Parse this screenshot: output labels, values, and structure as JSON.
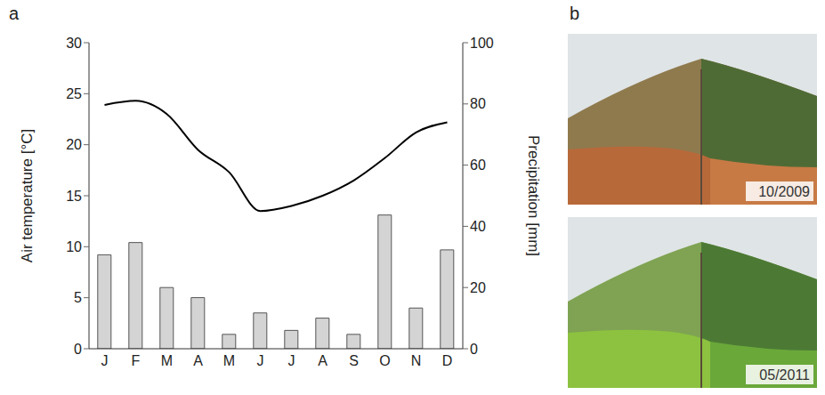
{
  "chart_data": {
    "type": "bar",
    "panel_label": "a",
    "categories": [
      "J",
      "F",
      "M",
      "A",
      "M",
      "J",
      "J",
      "A",
      "S",
      "O",
      "N",
      "D"
    ],
    "y_label": "Air temperature [°C]",
    "y2_label": "Precipitation [mm]",
    "ylim": [
      0,
      30
    ],
    "yticks": [
      0,
      5,
      10,
      15,
      20,
      25,
      30
    ],
    "y2lim": [
      0,
      100
    ],
    "y2ticks": [
      0,
      20,
      40,
      60,
      80,
      100
    ],
    "series": [
      {
        "type": "bar",
        "axis": "y2",
        "color": "#d4d4d4",
        "values": [
          30.7,
          34.7,
          20,
          16.7,
          4.7,
          11.7,
          6,
          10,
          4.7,
          43.7,
          13.3,
          32.3
        ]
      },
      {
        "type": "line",
        "axis": "y",
        "color": "#000000",
        "line_style": "solid",
        "values": [
          23.9,
          24.3,
          23,
          19.5,
          17.3,
          13.5,
          14,
          15,
          16.5,
          18.7,
          21.2,
          22.2
        ]
      }
    ]
  },
  "photos": {
    "panel_label": "b",
    "dates": [
      "10/2009",
      "05/2011"
    ]
  }
}
